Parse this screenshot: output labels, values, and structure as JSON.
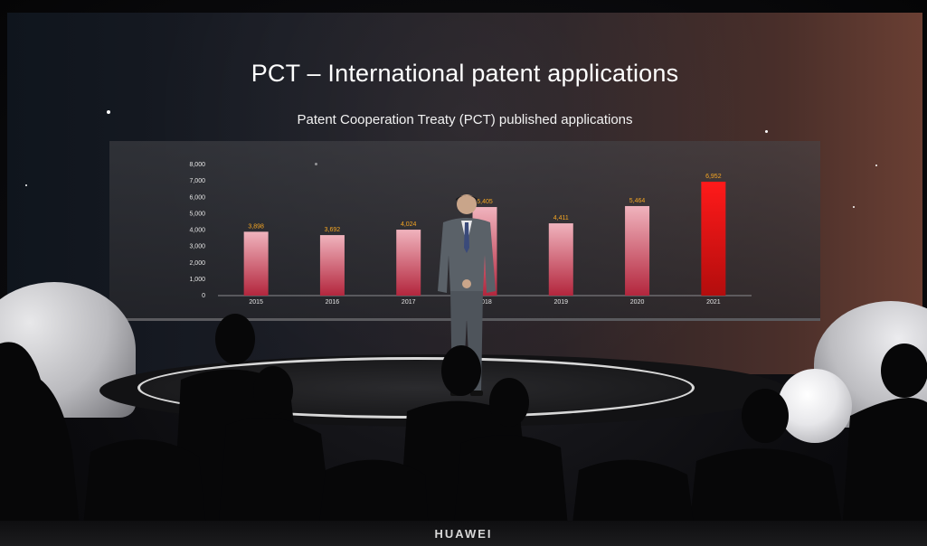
{
  "slide": {
    "title": "PCT – International patent applications",
    "subtitle": "Patent Cooperation Treaty (PCT) published applications"
  },
  "chart_data": {
    "type": "bar",
    "title": "Patent Cooperation Treaty (PCT) published applications",
    "categories": [
      "2015",
      "2016",
      "2017",
      "2018",
      "2019",
      "2020",
      "2021"
    ],
    "values": [
      3898,
      3692,
      4024,
      5405,
      4411,
      5464,
      6952
    ],
    "value_labels": [
      "3,898",
      "3,692",
      "4,024",
      "5,405",
      "4,411",
      "5,464",
      "6,952"
    ],
    "y_ticks": [
      "0",
      "1,000",
      "2,000",
      "3,000",
      "4,000",
      "5,000",
      "6,000",
      "7,000",
      "8,000"
    ],
    "y_tick_values": [
      0,
      1000,
      2000,
      3000,
      4000,
      5000,
      6000,
      7000,
      8000
    ],
    "ylim": [
      0,
      8000
    ],
    "grid": false,
    "colors": {
      "bar_top": "#f0b3bd",
      "bar_bottom": "#b3263d",
      "highlight_top": "#ff1a1a",
      "highlight_bottom": "#b30d0d",
      "value_label": "#f5a623",
      "tick_label": "#e6e6e6"
    }
  },
  "branding": {
    "logo_text": "HUAWEI"
  },
  "colors": {
    "screen_left": "#0f151d",
    "screen_right": "#6a3f33"
  }
}
